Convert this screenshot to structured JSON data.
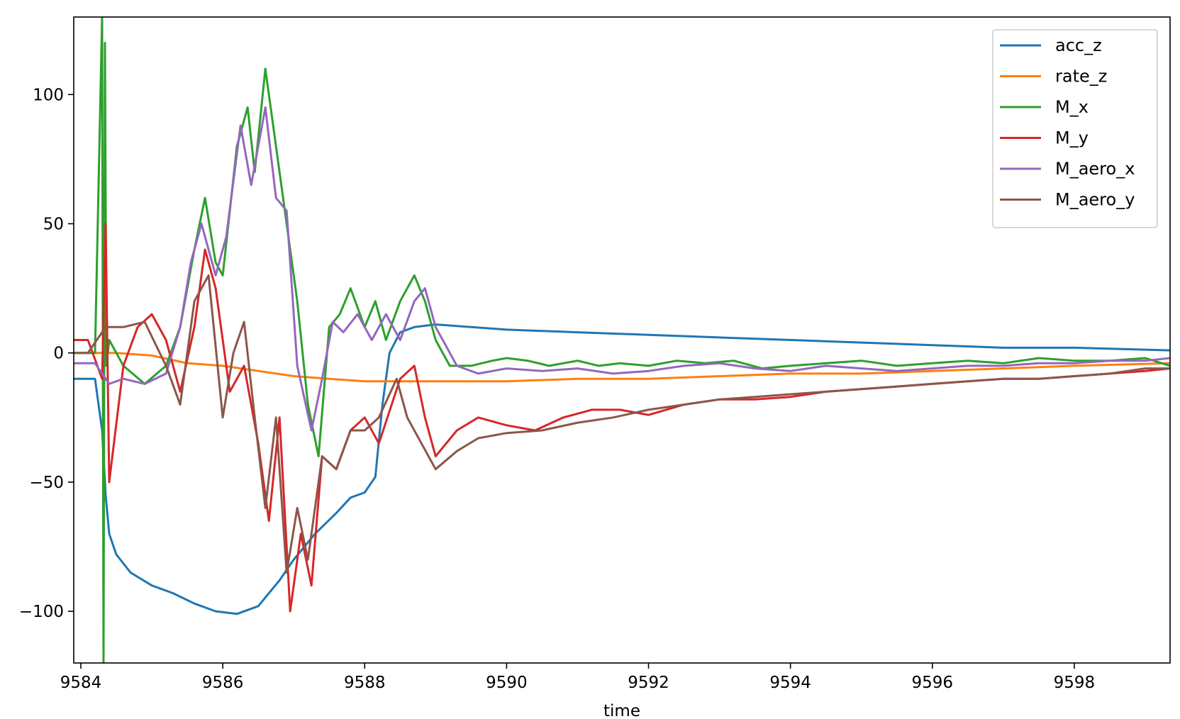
{
  "chart_data": {
    "type": "line",
    "title": "",
    "xlabel": "time",
    "ylabel": "",
    "xlim": [
      9583.9,
      9599.35
    ],
    "ylim": [
      -120,
      130
    ],
    "x_ticks": [
      9584,
      9586,
      9588,
      9590,
      9592,
      9594,
      9596,
      9598
    ],
    "y_ticks": [
      -100,
      -50,
      0,
      50,
      100
    ],
    "grid": false,
    "legend_position": "top-right",
    "series": [
      {
        "name": "acc_z",
        "color": "#1f77b4",
        "x": [
          9583.9,
          9584.2,
          9584.3,
          9584.35,
          9584.4,
          9584.5,
          9584.7,
          9585.0,
          9585.3,
          9585.6,
          9585.9,
          9586.2,
          9586.5,
          9586.8,
          9587.0,
          9587.3,
          9587.6,
          9587.8,
          9588.0,
          9588.15,
          9588.25,
          9588.35,
          9588.5,
          9588.7,
          9589.0,
          9590.0,
          9591.0,
          9592.0,
          9593.0,
          9594.0,
          9595.0,
          9596.0,
          9597.0,
          9598.0,
          9599.35
        ],
        "y": [
          -10,
          -10,
          -30,
          -55,
          -70,
          -78,
          -85,
          -90,
          -93,
          -97,
          -100,
          -101,
          -98,
          -88,
          -80,
          -70,
          -62,
          -56,
          -54,
          -48,
          -20,
          0,
          8,
          10,
          11,
          9,
          8,
          7,
          6,
          5,
          4,
          3,
          2,
          2,
          1
        ]
      },
      {
        "name": "rate_z",
        "color": "#ff7f0e",
        "x": [
          9583.9,
          9584.5,
          9585.0,
          9585.5,
          9586.0,
          9586.5,
          9587.0,
          9587.5,
          9588.0,
          9588.5,
          9589.0,
          9590.0,
          9591.0,
          9592.0,
          9593.0,
          9594.0,
          9595.0,
          9596.0,
          9597.0,
          9598.0,
          9599.35
        ],
        "y": [
          0,
          0,
          -1,
          -4,
          -5,
          -7,
          -9,
          -10,
          -11,
          -11,
          -11,
          -11,
          -10,
          -10,
          -9,
          -8,
          -8,
          -7,
          -6,
          -5,
          -4
        ]
      },
      {
        "name": "M_x",
        "color": "#2ca02c",
        "x": [
          9583.9,
          9584.2,
          9584.3,
          9584.32,
          9584.34,
          9584.36,
          9584.4,
          9584.6,
          9584.9,
          9585.2,
          9585.4,
          9585.6,
          9585.75,
          9585.9,
          9586.0,
          9586.2,
          9586.35,
          9586.45,
          9586.6,
          9586.75,
          9586.9,
          9587.05,
          9587.2,
          9587.35,
          9587.5,
          9587.65,
          9587.8,
          9588.0,
          9588.15,
          9588.3,
          9588.5,
          9588.7,
          9588.85,
          9589.0,
          9589.2,
          9589.5,
          9589.8,
          9590.0,
          9590.3,
          9590.6,
          9591.0,
          9591.3,
          9591.6,
          9592.0,
          9592.4,
          9592.8,
          9593.2,
          9593.6,
          9594.0,
          9594.5,
          9595.0,
          9595.5,
          9596.0,
          9596.5,
          9597.0,
          9597.5,
          9598.0,
          9598.5,
          9599.0,
          9599.35
        ],
        "y": [
          0,
          0,
          130,
          -120,
          120,
          -5,
          5,
          -5,
          -12,
          -5,
          10,
          40,
          60,
          35,
          30,
          80,
          95,
          70,
          110,
          80,
          50,
          20,
          -20,
          -40,
          10,
          15,
          25,
          10,
          20,
          5,
          20,
          30,
          20,
          5,
          -5,
          -5,
          -3,
          -2,
          -3,
          -5,
          -3,
          -5,
          -4,
          -5,
          -3,
          -4,
          -3,
          -6,
          -5,
          -4,
          -3,
          -5,
          -4,
          -3,
          -4,
          -2,
          -3,
          -3,
          -2,
          -5
        ]
      },
      {
        "name": "M_y",
        "color": "#d62728",
        "x": [
          9583.9,
          9584.1,
          9584.3,
          9584.35,
          9584.4,
          9584.6,
          9584.8,
          9585.0,
          9585.2,
          9585.4,
          9585.6,
          9585.75,
          9585.9,
          9586.1,
          9586.3,
          9586.5,
          9586.65,
          9586.8,
          9586.95,
          9587.1,
          9587.25,
          9587.4,
          9587.6,
          9587.8,
          9588.0,
          9588.2,
          9588.5,
          9588.7,
          9588.85,
          9589.0,
          9589.3,
          9589.6,
          9590.0,
          9590.4,
          9590.8,
          9591.2,
          9591.6,
          9592.0,
          9592.5,
          9593.0,
          9593.5,
          9594.0,
          9594.5,
          9595.0,
          9595.5,
          9596.0,
          9596.5,
          9597.0,
          9597.5,
          9598.0,
          9598.5,
          9599.0,
          9599.35
        ],
        "y": [
          5,
          5,
          -10,
          50,
          -50,
          -5,
          10,
          15,
          5,
          -15,
          10,
          40,
          25,
          -15,
          -5,
          -35,
          -65,
          -25,
          -100,
          -70,
          -90,
          -40,
          -45,
          -30,
          -25,
          -35,
          -10,
          -5,
          -25,
          -40,
          -30,
          -25,
          -28,
          -30,
          -25,
          -22,
          -22,
          -24,
          -20,
          -18,
          -18,
          -17,
          -15,
          -14,
          -13,
          -12,
          -11,
          -10,
          -10,
          -9,
          -8,
          -7,
          -6
        ]
      },
      {
        "name": "M_aero_x",
        "color": "#9467bd",
        "x": [
          9583.9,
          9584.2,
          9584.4,
          9584.6,
          9584.9,
          9585.2,
          9585.4,
          9585.55,
          9585.7,
          9585.9,
          9586.05,
          9586.25,
          9586.4,
          9586.6,
          9586.75,
          9586.9,
          9587.05,
          9587.25,
          9587.4,
          9587.55,
          9587.7,
          9587.9,
          9588.1,
          9588.3,
          9588.5,
          9588.7,
          9588.85,
          9589.0,
          9589.3,
          9589.6,
          9590.0,
          9590.5,
          9591.0,
          9591.5,
          9592.0,
          9592.5,
          9593.0,
          9593.5,
          9594.0,
          9594.5,
          9595.0,
          9595.5,
          9596.0,
          9596.5,
          9597.0,
          9597.5,
          9598.0,
          9598.5,
          9599.0,
          9599.35
        ],
        "y": [
          -4,
          -4,
          -12,
          -10,
          -12,
          -8,
          10,
          35,
          50,
          30,
          45,
          88,
          65,
          95,
          60,
          55,
          -5,
          -30,
          -10,
          12,
          8,
          15,
          5,
          15,
          5,
          20,
          25,
          10,
          -5,
          -8,
          -6,
          -7,
          -6,
          -8,
          -7,
          -5,
          -4,
          -6,
          -7,
          -5,
          -6,
          -7,
          -6,
          -5,
          -5,
          -4,
          -4,
          -3,
          -3,
          -2
        ]
      },
      {
        "name": "M_aero_y",
        "color": "#8c564b",
        "x": [
          9583.9,
          9584.1,
          9584.35,
          9584.6,
          9584.9,
          9585.2,
          9585.4,
          9585.6,
          9585.8,
          9586.0,
          9586.15,
          9586.3,
          9586.45,
          9586.6,
          9586.75,
          9586.9,
          9587.05,
          9587.2,
          9587.4,
          9587.6,
          9587.8,
          9588.0,
          9588.2,
          9588.45,
          9588.6,
          9588.8,
          9589.0,
          9589.3,
          9589.6,
          9590.0,
          9590.5,
          9591.0,
          9591.5,
          9592.0,
          9592.5,
          9593.0,
          9593.5,
          9594.0,
          9594.5,
          9595.0,
          9595.5,
          9596.0,
          9596.5,
          9597.0,
          9597.5,
          9598.0,
          9598.5,
          9599.0,
          9599.35
        ],
        "y": [
          0,
          0,
          10,
          10,
          12,
          -5,
          -20,
          20,
          30,
          -25,
          0,
          12,
          -25,
          -60,
          -25,
          -85,
          -60,
          -80,
          -40,
          -45,
          -30,
          -30,
          -25,
          -10,
          -25,
          -35,
          -45,
          -38,
          -33,
          -31,
          -30,
          -27,
          -25,
          -22,
          -20,
          -18,
          -17,
          -16,
          -15,
          -14,
          -13,
          -12,
          -11,
          -10,
          -10,
          -9,
          -8,
          -6,
          -6
        ]
      }
    ]
  }
}
